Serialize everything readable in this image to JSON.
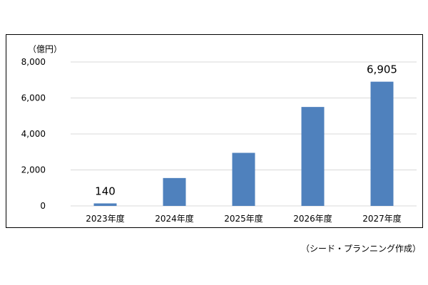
{
  "chart_data": {
    "type": "bar",
    "title": "",
    "xlabel": "",
    "ylabel": "",
    "unit_label": "（億円）",
    "categories": [
      "2023年度",
      "2024年度",
      "2025年度",
      "2026年度",
      "2027年度"
    ],
    "values": [
      140,
      1550,
      2950,
      5500,
      6905
    ],
    "data_labels": [
      {
        "index": 0,
        "text": "140"
      },
      {
        "index": 4,
        "text": "6,905"
      }
    ],
    "ylim": [
      0,
      8000
    ],
    "yticks": [
      0,
      2000,
      4000,
      6000,
      8000
    ],
    "ytick_labels": [
      "0",
      "2,000",
      "4,000",
      "6,000",
      "8,000"
    ],
    "grid": true,
    "legend": "none",
    "bar_color": "#4F81BD",
    "grid_color": "#D9D9D9"
  },
  "source_note": "（シード・プランニング作成）"
}
